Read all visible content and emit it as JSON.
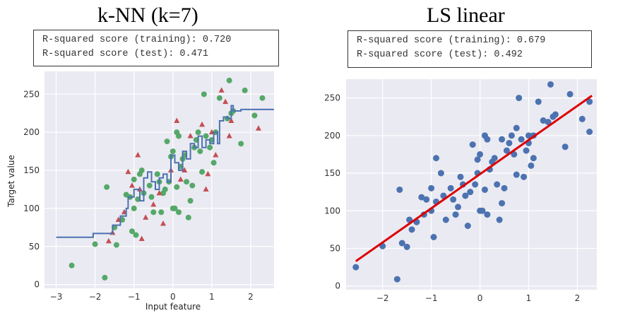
{
  "colors": {
    "plot_bg": "#eaeaf2",
    "grid": "#ffffff",
    "train_points": "#55a868",
    "test_points": "#c44e52",
    "knn_line": "#4c72b0",
    "ls_points": "#4c72b0",
    "ls_line": "#dd0000"
  },
  "knn": {
    "title": "k-NN (k=7)",
    "score_train": "R-squared score (training): 0.720",
    "score_test": "R-squared score (test): 0.471"
  },
  "ls": {
    "title": "LS linear",
    "score_train": "R-squared score (training): 0.679",
    "score_test": "R-squared score (test): 0.492"
  },
  "chart_data": [
    {
      "type": "scatter",
      "title": "k-NN (k=7)",
      "xlabel": "Input feature",
      "ylabel": "Target value",
      "xlim": [
        -3.3,
        2.6
      ],
      "ylim": [
        -5,
        280
      ],
      "xticks": [
        -3,
        -2,
        -1,
        0,
        1,
        2
      ],
      "xtick_labels": [
        "−3",
        "−2",
        "−1",
        "0",
        "1",
        "2"
      ],
      "yticks": [
        0,
        50,
        100,
        150,
        200,
        250
      ],
      "ytick_labels": [
        "0",
        "50",
        "100",
        "150",
        "200",
        "250"
      ],
      "grid": true,
      "series": [
        {
          "marker": "circle",
          "points": [
            [
              -2.6,
              25
            ],
            [
              -2.0,
              53
            ],
            [
              -1.75,
              9
            ],
            [
              -1.7,
              128
            ],
            [
              -1.45,
              52
            ],
            [
              -1.5,
              75
            ],
            [
              -1.3,
              85
            ],
            [
              -1.2,
              118
            ],
            [
              -1.1,
              115
            ],
            [
              -1.05,
              70
            ],
            [
              -1.0,
              100
            ],
            [
              -1.0,
              138
            ],
            [
              -0.95,
              65
            ],
            [
              -0.9,
              112
            ],
            [
              -0.85,
              145
            ],
            [
              -0.8,
              150
            ],
            [
              -0.75,
              120
            ],
            [
              -0.6,
              130
            ],
            [
              -0.55,
              115
            ],
            [
              -0.5,
              95
            ],
            [
              -0.4,
              145
            ],
            [
              -0.35,
              135
            ],
            [
              -0.3,
              95
            ],
            [
              -0.25,
              120
            ],
            [
              -0.2,
              125
            ],
            [
              -0.15,
              188
            ],
            [
              -0.1,
              135
            ],
            [
              -0.05,
              168
            ],
            [
              0.0,
              100
            ],
            [
              0.0,
              175
            ],
            [
              0.05,
              100
            ],
            [
              0.1,
              128
            ],
            [
              0.1,
              200
            ],
            [
              0.15,
              195
            ],
            [
              0.15,
              95
            ],
            [
              0.2,
              155
            ],
            [
              0.25,
              165
            ],
            [
              0.3,
              170
            ],
            [
              0.35,
              135
            ],
            [
              0.4,
              88
            ],
            [
              0.45,
              110
            ],
            [
              0.5,
              130
            ],
            [
              0.55,
              180
            ],
            [
              0.6,
              190
            ],
            [
              0.65,
              200
            ],
            [
              0.7,
              175
            ],
            [
              0.75,
              148
            ],
            [
              0.8,
              250
            ],
            [
              0.85,
              195
            ],
            [
              0.95,
              180
            ],
            [
              1.0,
              190
            ],
            [
              1.05,
              160
            ],
            [
              1.1,
              200
            ],
            [
              1.2,
              245
            ],
            [
              1.4,
              218
            ],
            [
              1.5,
              225
            ],
            [
              1.55,
              228
            ],
            [
              1.75,
              185
            ],
            [
              1.85,
              255
            ],
            [
              2.1,
              222
            ],
            [
              2.3,
              245
            ],
            [
              1.45,
              268
            ]
          ]
        },
        {
          "marker": "triangle",
          "points": [
            [
              -1.65,
              57
            ],
            [
              -1.55,
              68
            ],
            [
              -1.4,
              85
            ],
            [
              -1.25,
              95
            ],
            [
              -1.15,
              148
            ],
            [
              -1.05,
              130
            ],
            [
              -0.85,
              125
            ],
            [
              -0.8,
              60
            ],
            [
              -0.7,
              88
            ],
            [
              -0.5,
              105
            ],
            [
              -0.35,
              120
            ],
            [
              -0.25,
              80
            ],
            [
              -0.05,
              150
            ],
            [
              0.1,
              215
            ],
            [
              0.2,
              138
            ],
            [
              0.3,
              150
            ],
            [
              0.45,
              195
            ],
            [
              0.75,
              210
            ],
            [
              0.85,
              125
            ],
            [
              0.9,
              145
            ],
            [
              1.0,
              200
            ],
            [
              1.1,
              170
            ],
            [
              1.25,
              255
            ],
            [
              1.35,
              240
            ],
            [
              1.45,
              195
            ],
            [
              1.5,
              215
            ],
            [
              2.2,
              205
            ],
            [
              -0.9,
              170
            ]
          ]
        },
        {
          "marker": "line",
          "points": [
            [
              -3.0,
              62
            ],
            [
              -2.05,
              62
            ],
            [
              -2.05,
              67
            ],
            [
              -1.55,
              67
            ],
            [
              -1.55,
              78
            ],
            [
              -1.35,
              78
            ],
            [
              -1.35,
              90
            ],
            [
              -1.2,
              90
            ],
            [
              -1.2,
              100
            ],
            [
              -1.15,
              100
            ],
            [
              -1.15,
              115
            ],
            [
              -1.0,
              115
            ],
            [
              -1.0,
              125
            ],
            [
              -0.85,
              125
            ],
            [
              -0.85,
              110
            ],
            [
              -0.75,
              110
            ],
            [
              -0.75,
              140
            ],
            [
              -0.65,
              140
            ],
            [
              -0.65,
              148
            ],
            [
              -0.55,
              148
            ],
            [
              -0.55,
              135
            ],
            [
              -0.45,
              135
            ],
            [
              -0.45,
              125
            ],
            [
              -0.35,
              125
            ],
            [
              -0.35,
              140
            ],
            [
              -0.25,
              140
            ],
            [
              -0.25,
              145
            ],
            [
              -0.15,
              145
            ],
            [
              -0.15,
              135
            ],
            [
              -0.05,
              135
            ],
            [
              -0.05,
              170
            ],
            [
              0.05,
              170
            ],
            [
              0.05,
              160
            ],
            [
              0.15,
              160
            ],
            [
              0.15,
              150
            ],
            [
              0.25,
              150
            ],
            [
              0.25,
              175
            ],
            [
              0.35,
              175
            ],
            [
              0.35,
              165
            ],
            [
              0.45,
              165
            ],
            [
              0.45,
              185
            ],
            [
              0.55,
              185
            ],
            [
              0.55,
              180
            ],
            [
              0.65,
              180
            ],
            [
              0.65,
              195
            ],
            [
              0.75,
              195
            ],
            [
              0.75,
              180
            ],
            [
              0.85,
              180
            ],
            [
              0.85,
              190
            ],
            [
              0.95,
              190
            ],
            [
              0.95,
              185
            ],
            [
              1.05,
              185
            ],
            [
              1.05,
              200
            ],
            [
              1.15,
              200
            ],
            [
              1.15,
              185
            ],
            [
              1.2,
              185
            ],
            [
              1.2,
              215
            ],
            [
              1.3,
              215
            ],
            [
              1.3,
              220
            ],
            [
              1.4,
              220
            ],
            [
              1.4,
              218
            ],
            [
              1.5,
              218
            ],
            [
              1.5,
              235
            ],
            [
              1.55,
              235
            ],
            [
              1.55,
              228
            ],
            [
              1.75,
              228
            ],
            [
              1.75,
              230
            ],
            [
              2.6,
              230
            ]
          ]
        }
      ]
    },
    {
      "type": "scatter",
      "title": "LS linear",
      "xlabel": "",
      "ylabel": "",
      "xlim": [
        -2.75,
        2.4
      ],
      "ylim": [
        -5,
        275
      ],
      "xticks": [
        -2,
        -1,
        0,
        1,
        2
      ],
      "xtick_labels": [
        "−2",
        "−1",
        "0",
        "1",
        "2"
      ],
      "yticks": [
        0,
        50,
        100,
        150,
        200,
        250
      ],
      "ytick_labels": [
        "0",
        "50",
        "100",
        "150",
        "200",
        "250"
      ],
      "grid": true,
      "series": [
        {
          "marker": "circle",
          "points": [
            [
              -2.55,
              25
            ],
            [
              -2.0,
              53
            ],
            [
              -1.7,
              9
            ],
            [
              -1.65,
              128
            ],
            [
              -1.6,
              57
            ],
            [
              -1.5,
              52
            ],
            [
              -1.45,
              88
            ],
            [
              -1.4,
              75
            ],
            [
              -1.3,
              85
            ],
            [
              -1.2,
              118
            ],
            [
              -1.15,
              95
            ],
            [
              -1.1,
              115
            ],
            [
              -1.0,
              100
            ],
            [
              -1.0,
              130
            ],
            [
              -0.95,
              65
            ],
            [
              -0.9,
              112
            ],
            [
              -0.8,
              150
            ],
            [
              -0.75,
              120
            ],
            [
              -0.7,
              88
            ],
            [
              -0.6,
              130
            ],
            [
              -0.55,
              115
            ],
            [
              -0.5,
              95
            ],
            [
              -0.45,
              105
            ],
            [
              -0.4,
              145
            ],
            [
              -0.35,
              135
            ],
            [
              -0.3,
              120
            ],
            [
              -0.25,
              80
            ],
            [
              -0.2,
              125
            ],
            [
              -0.15,
              188
            ],
            [
              -0.1,
              135
            ],
            [
              -0.05,
              168
            ],
            [
              -0.05,
              150
            ],
            [
              0.0,
              100
            ],
            [
              0.0,
              175
            ],
            [
              0.05,
              100
            ],
            [
              0.1,
              128
            ],
            [
              0.1,
              200
            ],
            [
              0.15,
              195
            ],
            [
              0.15,
              95
            ],
            [
              0.2,
              155
            ],
            [
              0.25,
              165
            ],
            [
              0.3,
              170
            ],
            [
              0.35,
              135
            ],
            [
              0.4,
              88
            ],
            [
              0.45,
              110
            ],
            [
              0.5,
              130
            ],
            [
              0.55,
              180
            ],
            [
              0.6,
              190
            ],
            [
              0.65,
              200
            ],
            [
              0.7,
              175
            ],
            [
              0.75,
              148
            ],
            [
              0.8,
              250
            ],
            [
              0.85,
              195
            ],
            [
              0.9,
              145
            ],
            [
              0.95,
              180
            ],
            [
              1.0,
              190
            ],
            [
              1.05,
              160
            ],
            [
              1.1,
              200
            ],
            [
              1.2,
              245
            ],
            [
              1.3,
              220
            ],
            [
              1.4,
              218
            ],
            [
              1.45,
              268
            ],
            [
              1.5,
              225
            ],
            [
              1.55,
              228
            ],
            [
              1.75,
              185
            ],
            [
              1.85,
              255
            ],
            [
              2.1,
              222
            ],
            [
              2.25,
              245
            ],
            [
              2.25,
              205
            ],
            [
              -0.9,
              170
            ],
            [
              0.45,
              195
            ],
            [
              0.75,
              210
            ],
            [
              1.0,
              200
            ],
            [
              1.1,
              170
            ]
          ]
        },
        {
          "marker": "line",
          "points": [
            [
              -2.55,
              33
            ],
            [
              2.3,
              253
            ]
          ]
        }
      ]
    }
  ]
}
